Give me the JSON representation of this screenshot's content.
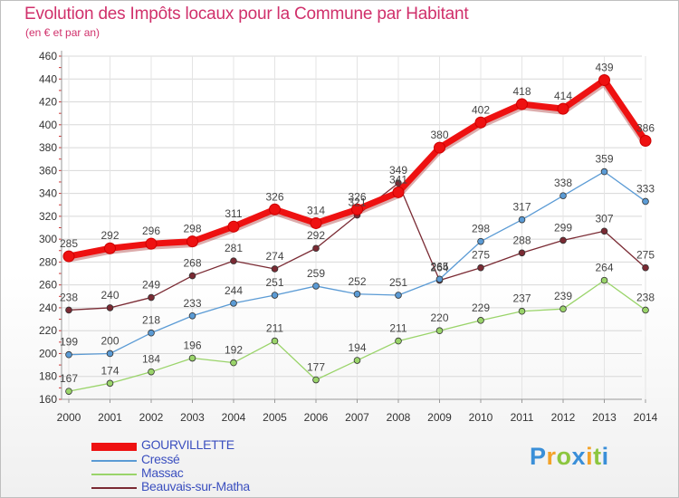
{
  "header": {
    "title": "Evolution des Impôts locaux pour la Commune par Habitant",
    "subtitle": "(en € et par an)"
  },
  "chart_data": {
    "type": "line",
    "title": "Evolution des Impôts locaux pour la Commune par Habitant",
    "subtitle": "(en € et par an)",
    "xlabel": "",
    "ylabel": "",
    "x": [
      "2000",
      "2001",
      "2002",
      "2003",
      "2004",
      "2005",
      "2006",
      "2007",
      "2008",
      "2009",
      "2010",
      "2011",
      "2012",
      "2013",
      "2014"
    ],
    "ylim": [
      160,
      460
    ],
    "yticks": [
      160,
      180,
      200,
      220,
      240,
      260,
      280,
      300,
      320,
      340,
      360,
      380,
      400,
      420,
      440,
      460
    ],
    "grid": true,
    "legend_position": "bottom-left",
    "series": [
      {
        "name": "GOURVILLETTE",
        "color": "#ee1111",
        "values": [
          285,
          292,
          296,
          298,
          311,
          326,
          314,
          326,
          341,
          380,
          402,
          418,
          414,
          439,
          386
        ],
        "labels": [
          "285",
          "292",
          "296",
          "298",
          "311",
          "326",
          "314",
          "326",
          "341",
          "380",
          "402",
          "418",
          "414",
          "439",
          "386"
        ]
      },
      {
        "name": "Cressé",
        "color": "#5b9bd5",
        "values": [
          199,
          200,
          218,
          233,
          244,
          251,
          259,
          252,
          251,
          265,
          298,
          317,
          338,
          359,
          333
        ],
        "labels": [
          "199",
          "200",
          "218",
          "233",
          "244",
          "251",
          "259",
          "252",
          "251",
          "265",
          "298",
          "317",
          "338",
          "359",
          "333"
        ]
      },
      {
        "name": "Massac",
        "color": "#9ad46a",
        "values": [
          167,
          174,
          184,
          196,
          192,
          211,
          177,
          194,
          211,
          220,
          229,
          237,
          239,
          264,
          238
        ],
        "labels": [
          "167",
          "174",
          "184",
          "196",
          "192",
          "211",
          "177",
          "194",
          "211",
          "220",
          "229",
          "237",
          "239",
          "264",
          "238"
        ]
      },
      {
        "name": "Beauvais-sur-Matha",
        "color": "#7a2a33",
        "values": [
          238,
          240,
          249,
          268,
          281,
          274,
          292,
          321,
          349,
          264,
          275,
          288,
          299,
          307,
          275
        ],
        "labels": [
          "238",
          "240",
          "249",
          "268",
          "281",
          "274",
          "292",
          "321",
          "349",
          "264",
          "275",
          "288",
          "299",
          "307",
          "275"
        ]
      }
    ]
  },
  "logo": {
    "letters": [
      "P",
      "r",
      "o",
      "x",
      "i",
      "t",
      "i"
    ],
    "colors": [
      "#3a8fd8",
      "#f3a229",
      "#8cc63f",
      "#3a8fd8",
      "#f3a229",
      "#8cc63f",
      "#3a8fd8"
    ]
  }
}
